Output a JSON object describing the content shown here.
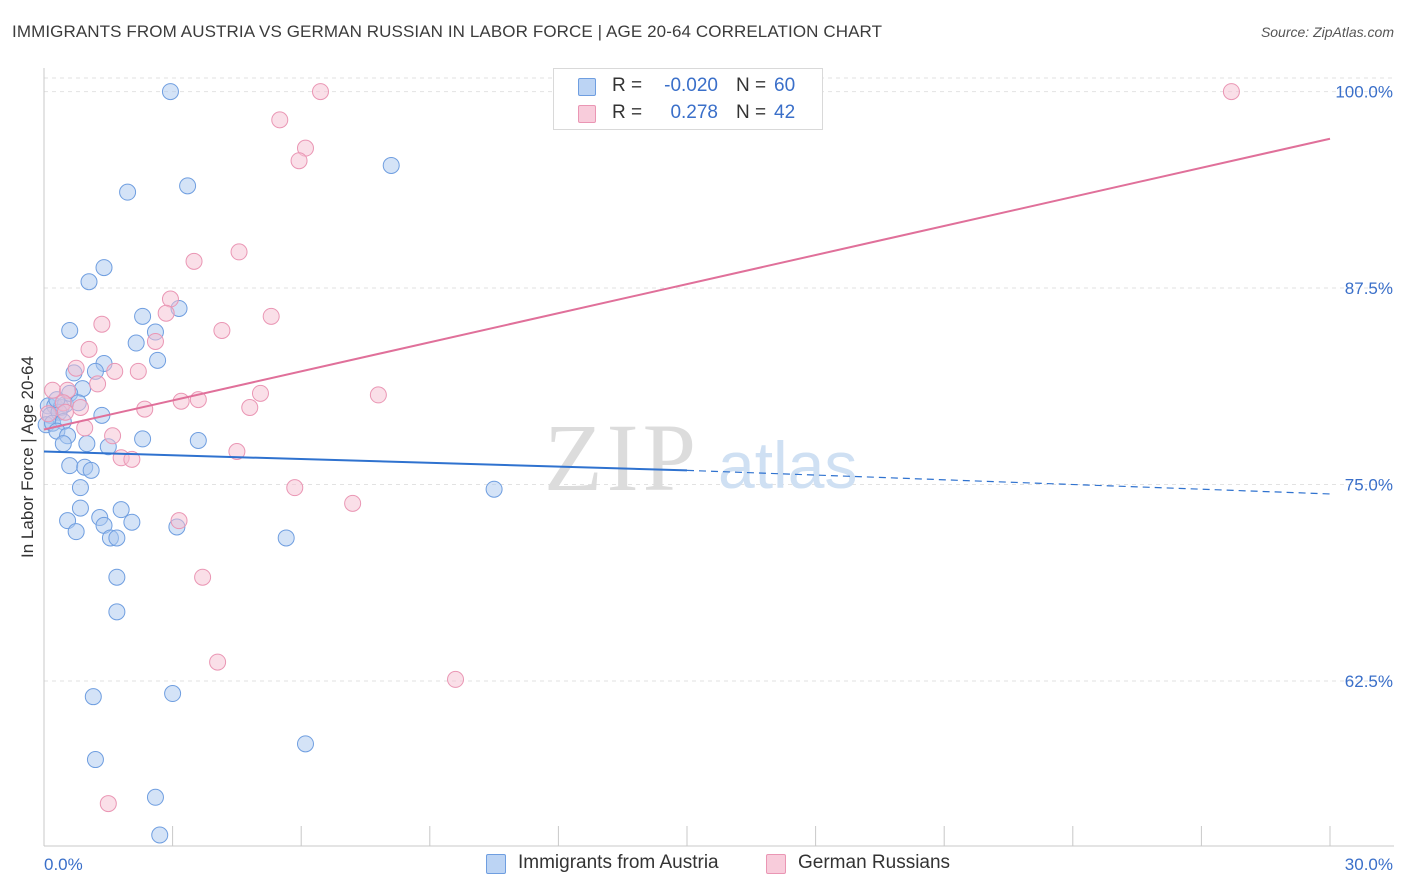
{
  "title": "IMMIGRANTS FROM AUSTRIA VS GERMAN RUSSIAN IN LABOR FORCE | AGE 20-64 CORRELATION CHART",
  "source": "Source: ZipAtlas.com",
  "watermark": {
    "zip": "ZIP",
    "atlas": "atlas"
  },
  "colors": {
    "blue_fill": "#a9c8f0",
    "blue_stroke": "#6f9ee0",
    "blue_line": "#2f72cf",
    "pink_fill": "#f6c0d2",
    "pink_stroke": "#ea96b4",
    "pink_line": "#e0709a",
    "axis_text": "#3a6fc9",
    "grid": "#e2e2e2"
  },
  "legend": {
    "rows": [
      {
        "r_label": "R =",
        "r_value": "-0.020",
        "n_label": "N =",
        "n_value": "60"
      },
      {
        "r_label": "R =",
        "r_value": "0.278",
        "n_label": "N =",
        "n_value": "42"
      }
    ]
  },
  "chart_data": {
    "type": "scatter",
    "title": "IMMIGRANTS FROM AUSTRIA VS GERMAN RUSSIAN IN LABOR FORCE | AGE 20-64 CORRELATION CHART",
    "xlabel": "",
    "ylabel": "In Labor Force | Age 20-64",
    "xlim": [
      0,
      30
    ],
    "ylim": [
      52,
      101.5
    ],
    "x_tick_labels": [
      "0.0%",
      "30.0%"
    ],
    "y_ticks": [
      62.5,
      75.0,
      87.5,
      100.0
    ],
    "y_tick_labels": [
      "62.5%",
      "75.0%",
      "87.5%",
      "100.0%"
    ],
    "grid": true,
    "legend_position": "top-center",
    "series": [
      {
        "name": "Immigrants from Austria",
        "color": "blue",
        "r": -0.02,
        "n": 60,
        "trend": {
          "x0": 0,
          "y0": 77.1,
          "x1": 15,
          "y1": 75.9,
          "x_end": 30,
          "y_end": 74.4
        },
        "points": [
          [
            2.95,
            100.0
          ],
          [
            8.1,
            95.3
          ],
          [
            1.95,
            93.6
          ],
          [
            3.35,
            94.0
          ],
          [
            1.4,
            88.8
          ],
          [
            1.05,
            87.9
          ],
          [
            3.15,
            86.2
          ],
          [
            2.3,
            85.7
          ],
          [
            0.6,
            84.8
          ],
          [
            2.6,
            84.7
          ],
          [
            2.15,
            84.0
          ],
          [
            2.65,
            82.9
          ],
          [
            1.4,
            82.7
          ],
          [
            0.7,
            82.1
          ],
          [
            1.2,
            82.2
          ],
          [
            0.9,
            81.1
          ],
          [
            0.1,
            80.0
          ],
          [
            0.25,
            80.0
          ],
          [
            0.4,
            79.9
          ],
          [
            0.5,
            80.1
          ],
          [
            0.6,
            80.8
          ],
          [
            0.8,
            80.2
          ],
          [
            0.15,
            79.4
          ],
          [
            0.35,
            79.6
          ],
          [
            1.35,
            79.4
          ],
          [
            0.05,
            78.8
          ],
          [
            0.2,
            78.9
          ],
          [
            0.45,
            79.0
          ],
          [
            0.3,
            78.4
          ],
          [
            0.55,
            78.1
          ],
          [
            0.45,
            77.6
          ],
          [
            1.0,
            77.6
          ],
          [
            1.5,
            77.4
          ],
          [
            2.3,
            77.9
          ],
          [
            3.6,
            77.8
          ],
          [
            0.6,
            76.2
          ],
          [
            0.95,
            76.1
          ],
          [
            1.1,
            75.9
          ],
          [
            0.85,
            74.8
          ],
          [
            10.5,
            74.7
          ],
          [
            0.85,
            73.5
          ],
          [
            1.8,
            73.4
          ],
          [
            0.55,
            72.7
          ],
          [
            1.3,
            72.9
          ],
          [
            1.4,
            72.4
          ],
          [
            2.05,
            72.6
          ],
          [
            3.1,
            72.3
          ],
          [
            0.75,
            72.0
          ],
          [
            1.55,
            71.6
          ],
          [
            1.7,
            71.6
          ],
          [
            5.65,
            71.6
          ],
          [
            1.7,
            69.1
          ],
          [
            1.7,
            66.9
          ],
          [
            1.15,
            61.5
          ],
          [
            3.0,
            61.7
          ],
          [
            6.1,
            58.5
          ],
          [
            1.2,
            57.5
          ],
          [
            2.6,
            55.1
          ],
          [
            2.7,
            52.7
          ],
          [
            0.3,
            80.4
          ]
        ]
      },
      {
        "name": "German Russians",
        "color": "pink",
        "r": 0.278,
        "n": 42,
        "trend": {
          "x0": 0,
          "y0": 78.5,
          "x1": 30,
          "y1": 97.0
        },
        "points": [
          [
            6.45,
            100.0
          ],
          [
            27.7,
            100.0
          ],
          [
            5.5,
            98.2
          ],
          [
            6.1,
            96.4
          ],
          [
            5.95,
            95.6
          ],
          [
            4.55,
            89.8
          ],
          [
            3.5,
            89.2
          ],
          [
            2.95,
            86.8
          ],
          [
            2.85,
            85.9
          ],
          [
            5.3,
            85.7
          ],
          [
            1.35,
            85.2
          ],
          [
            4.15,
            84.8
          ],
          [
            2.6,
            84.1
          ],
          [
            1.05,
            83.6
          ],
          [
            1.65,
            82.2
          ],
          [
            2.2,
            82.2
          ],
          [
            0.75,
            82.4
          ],
          [
            1.25,
            81.4
          ],
          [
            0.2,
            81.0
          ],
          [
            0.55,
            81.0
          ],
          [
            5.05,
            80.8
          ],
          [
            7.8,
            80.7
          ],
          [
            3.2,
            80.3
          ],
          [
            3.6,
            80.4
          ],
          [
            0.45,
            80.2
          ],
          [
            0.85,
            79.9
          ],
          [
            2.35,
            79.8
          ],
          [
            4.8,
            79.9
          ],
          [
            0.1,
            79.5
          ],
          [
            0.5,
            79.6
          ],
          [
            0.95,
            78.6
          ],
          [
            1.6,
            78.1
          ],
          [
            4.5,
            77.1
          ],
          [
            1.8,
            76.7
          ],
          [
            2.05,
            76.6
          ],
          [
            5.85,
            74.8
          ],
          [
            7.2,
            73.8
          ],
          [
            3.15,
            72.7
          ],
          [
            3.7,
            69.1
          ],
          [
            4.05,
            63.7
          ],
          [
            9.6,
            62.6
          ],
          [
            1.5,
            54.7
          ]
        ]
      }
    ]
  },
  "bottom_legend": [
    "Immigrants from Austria",
    "German Russians"
  ]
}
